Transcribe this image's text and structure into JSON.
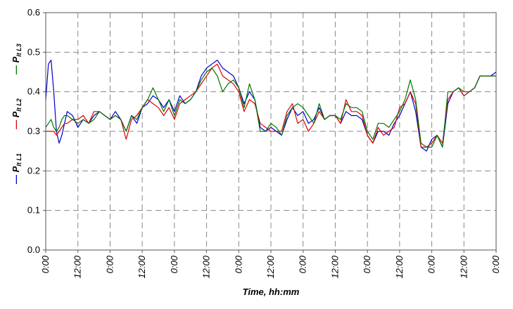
{
  "chart_data": {
    "type": "line",
    "xlabel": "Time, hh:mm",
    "ylabel": "",
    "ylim": [
      0.0,
      0.6
    ],
    "y_ticks": [
      "0.0",
      "0.1",
      "0.2",
      "0.3",
      "0.4",
      "0.5",
      "0.6"
    ],
    "x_ticks": [
      "0:00",
      "12:00",
      "0:00",
      "12:00",
      "0:00",
      "12:00",
      "0:00",
      "12:00",
      "0:00",
      "12:00",
      "0:00",
      "12:00",
      "0:00",
      "12:00",
      "0:00"
    ],
    "x_range_hours": [
      0,
      168
    ],
    "grid": true,
    "legend_position": "left-vertical",
    "legend": [
      {
        "symbol": "—",
        "main": "P",
        "sub": "lt L1",
        "color": "#0000cc"
      },
      {
        "symbol": "—",
        "main": "P",
        "sub": "lt L2",
        "color": "#dd0000"
      },
      {
        "symbol": "—",
        "main": "P",
        "sub": "lt L3",
        "color": "#007700"
      }
    ],
    "series": [
      {
        "color": "#0000cc",
        "x": [
          0,
          1,
          2,
          3,
          4,
          5,
          6,
          7,
          8,
          10,
          12,
          14,
          16,
          18,
          20,
          22,
          24,
          26,
          28,
          30,
          32,
          34,
          36,
          38,
          40,
          42,
          44,
          46,
          48,
          50,
          52,
          54,
          56,
          58,
          60,
          62,
          64,
          66,
          68,
          70,
          72,
          74,
          76,
          78,
          80,
          82,
          84,
          86,
          88,
          90,
          92,
          94,
          96,
          98,
          100,
          102,
          104,
          106,
          108,
          110,
          112,
          114,
          116,
          118,
          120,
          122,
          124,
          126,
          128,
          130,
          132,
          134,
          136,
          138,
          140,
          142,
          144,
          146,
          148,
          150,
          152,
          154,
          156,
          158,
          160,
          162,
          164,
          166,
          168
        ],
        "y": [
          0.38,
          0.47,
          0.48,
          0.4,
          0.3,
          0.27,
          0.29,
          0.32,
          0.35,
          0.34,
          0.31,
          0.33,
          0.32,
          0.34,
          0.35,
          0.34,
          0.33,
          0.35,
          0.33,
          0.3,
          0.34,
          0.32,
          0.36,
          0.37,
          0.39,
          0.38,
          0.36,
          0.38,
          0.35,
          0.39,
          0.37,
          0.38,
          0.4,
          0.44,
          0.46,
          0.47,
          0.48,
          0.46,
          0.45,
          0.44,
          0.41,
          0.37,
          0.4,
          0.38,
          0.31,
          0.3,
          0.31,
          0.3,
          0.29,
          0.33,
          0.36,
          0.34,
          0.35,
          0.32,
          0.33,
          0.36,
          0.33,
          0.34,
          0.34,
          0.32,
          0.35,
          0.34,
          0.34,
          0.33,
          0.29,
          0.27,
          0.3,
          0.3,
          0.29,
          0.32,
          0.34,
          0.37,
          0.4,
          0.35,
          0.26,
          0.25,
          0.28,
          0.29,
          0.26,
          0.37,
          0.4,
          0.41,
          0.39,
          0.4,
          0.41,
          0.44,
          0.44,
          0.44,
          0.45
        ]
      },
      {
        "color": "#dd0000",
        "x": [
          0,
          1,
          2,
          3,
          4,
          5,
          6,
          7,
          8,
          10,
          12,
          14,
          16,
          18,
          20,
          22,
          24,
          26,
          28,
          30,
          32,
          34,
          36,
          38,
          40,
          42,
          44,
          46,
          48,
          50,
          52,
          54,
          56,
          58,
          60,
          62,
          64,
          66,
          68,
          70,
          72,
          74,
          76,
          78,
          80,
          82,
          84,
          86,
          88,
          90,
          92,
          94,
          96,
          98,
          100,
          102,
          104,
          106,
          108,
          110,
          112,
          114,
          116,
          118,
          120,
          122,
          124,
          126,
          128,
          130,
          132,
          134,
          136,
          138,
          140,
          142,
          144,
          146,
          148,
          150,
          152,
          154,
          156,
          158,
          160,
          162,
          164,
          166,
          168
        ],
        "y": [
          0.3,
          0.3,
          0.3,
          0.3,
          0.29,
          0.3,
          0.31,
          0.32,
          0.32,
          0.33,
          0.33,
          0.34,
          0.32,
          0.35,
          0.35,
          0.34,
          0.33,
          0.34,
          0.33,
          0.28,
          0.33,
          0.34,
          0.36,
          0.38,
          0.37,
          0.36,
          0.34,
          0.36,
          0.33,
          0.37,
          0.38,
          0.39,
          0.4,
          0.42,
          0.44,
          0.46,
          0.47,
          0.44,
          0.43,
          0.42,
          0.4,
          0.35,
          0.38,
          0.37,
          0.32,
          0.31,
          0.3,
          0.3,
          0.3,
          0.35,
          0.37,
          0.32,
          0.33,
          0.3,
          0.32,
          0.35,
          0.33,
          0.34,
          0.34,
          0.32,
          0.38,
          0.35,
          0.35,
          0.34,
          0.29,
          0.27,
          0.31,
          0.29,
          0.3,
          0.31,
          0.36,
          0.37,
          0.4,
          0.37,
          0.26,
          0.26,
          0.27,
          0.29,
          0.27,
          0.38,
          0.4,
          0.41,
          0.39,
          0.4,
          0.41,
          0.44,
          0.44,
          0.44,
          0.44
        ]
      },
      {
        "color": "#007700",
        "x": [
          0,
          1,
          2,
          3,
          4,
          5,
          6,
          7,
          8,
          10,
          12,
          14,
          16,
          18,
          20,
          22,
          24,
          26,
          28,
          30,
          32,
          34,
          36,
          38,
          40,
          42,
          44,
          46,
          48,
          50,
          52,
          54,
          56,
          58,
          60,
          62,
          64,
          66,
          68,
          70,
          72,
          74,
          76,
          78,
          80,
          82,
          84,
          86,
          88,
          90,
          92,
          94,
          96,
          98,
          100,
          102,
          104,
          106,
          108,
          110,
          112,
          114,
          116,
          118,
          120,
          122,
          124,
          126,
          128,
          130,
          132,
          134,
          136,
          138,
          140,
          142,
          144,
          146,
          148,
          150,
          152,
          154,
          156,
          158,
          160,
          162,
          164,
          166,
          168
        ],
        "y": [
          0.31,
          0.32,
          0.33,
          0.31,
          0.3,
          0.31,
          0.33,
          0.34,
          0.34,
          0.33,
          0.32,
          0.33,
          0.32,
          0.33,
          0.35,
          0.34,
          0.33,
          0.34,
          0.33,
          0.3,
          0.34,
          0.33,
          0.36,
          0.38,
          0.41,
          0.38,
          0.35,
          0.38,
          0.34,
          0.38,
          0.37,
          0.38,
          0.4,
          0.43,
          0.45,
          0.46,
          0.44,
          0.4,
          0.42,
          0.43,
          0.41,
          0.36,
          0.42,
          0.38,
          0.3,
          0.3,
          0.32,
          0.31,
          0.29,
          0.34,
          0.36,
          0.37,
          0.36,
          0.34,
          0.32,
          0.37,
          0.33,
          0.34,
          0.34,
          0.33,
          0.37,
          0.36,
          0.36,
          0.35,
          0.3,
          0.28,
          0.32,
          0.32,
          0.31,
          0.33,
          0.35,
          0.38,
          0.43,
          0.38,
          0.27,
          0.26,
          0.26,
          0.29,
          0.26,
          0.4,
          0.4,
          0.41,
          0.4,
          0.4,
          0.41,
          0.44,
          0.44,
          0.44,
          0.44
        ]
      }
    ]
  }
}
